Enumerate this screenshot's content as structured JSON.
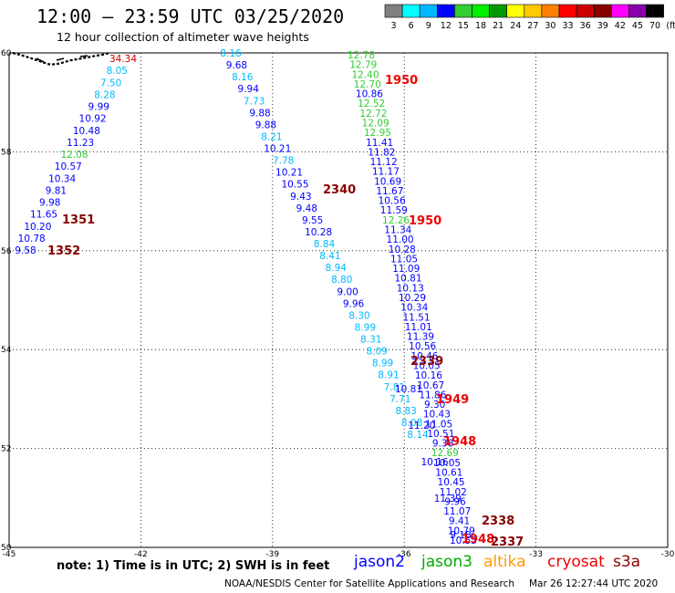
{
  "header": {
    "title": "12:00 – 23:59 UTC 03/25/2020",
    "subtitle": "12 hour collection of altimeter wave heights"
  },
  "legend": {
    "colors": [
      "#808080",
      "#00ffff",
      "#00b8ff",
      "#0000ff",
      "#33cc33",
      "#00ee00",
      "#009900",
      "#ffff00",
      "#ffc800",
      "#ff8000",
      "#ff0000",
      "#cc0000",
      "#880000",
      "#ff00ff",
      "#8800aa",
      "#000000"
    ],
    "labels": [
      "3",
      "6",
      "9",
      "12",
      "15",
      "18",
      "21",
      "24",
      "27",
      "30",
      "33",
      "36",
      "39",
      "42",
      "45",
      "70",
      "(ft)"
    ]
  },
  "axes": {
    "lat_ticks": [
      "60",
      "58",
      "56",
      "54",
      "52",
      "50"
    ],
    "lon_ticks": [
      "-45",
      "-42",
      "-39",
      "-36",
      "-33",
      "-30"
    ]
  },
  "readings": {
    "track1": [
      "34.34",
      "8.05",
      "7.50",
      "8.28",
      "9.99",
      "10.92",
      "10.48",
      "11.23",
      "12.08",
      "10.57",
      "10.34",
      "9.81",
      "9.98",
      "11.65",
      "10.20",
      "10.78",
      "9.58"
    ],
    "track2": [
      "8.16",
      "9.68",
      "8.16",
      "9.94",
      "7.73",
      "9.88",
      "9.88",
      "8.21",
      "10.21",
      "7.78",
      "10.21",
      "10.55",
      "9.43",
      "9.48",
      "9.55",
      "10.28",
      "8.84",
      "8.41",
      "8.94",
      "8.80",
      "9.00",
      "9.96",
      "8.30",
      "8.99",
      "8.31",
      "8.09",
      "8.99",
      "8.91",
      "7.81",
      "7.71",
      "8.83",
      "8.08",
      "8.14"
    ],
    "track3": [
      "12.78",
      "12.79",
      "12.40",
      "12.70",
      "10.86",
      "12.52",
      "12.72",
      "12.09",
      "12.95",
      "11.41",
      "11.82",
      "11.12",
      "11.17",
      "10.69",
      "11.67",
      "10.56",
      "11.59",
      "12.26",
      "11.34",
      "11.00",
      "10.28",
      "11.05",
      "11.09",
      "10.81",
      "10.13",
      "10.29",
      "10.34",
      "11.51",
      "11.01",
      "11.39",
      "10.56",
      "10.46",
      "10.05",
      "10.16",
      "10.67",
      "11.86",
      "9.30",
      "10.43",
      "11.05",
      "10.51",
      "9.38",
      "12.69",
      "10.05",
      "10.61",
      "10.45",
      "11.02",
      "9.96",
      "11.07",
      "9.41",
      "10.79",
      "10.55"
    ],
    "track3_extra": [
      "10.81",
      "11.20",
      "10.16",
      "11.39",
      "9.18"
    ],
    "times": [
      {
        "text": "1950",
        "color": "#ee0000"
      },
      {
        "text": "2340",
        "color": "#880000"
      },
      {
        "text": "1351",
        "color": "#880000"
      },
      {
        "text": "1950",
        "color": "#ee0000"
      },
      {
        "text": "1352",
        "color": "#880000"
      },
      {
        "text": "2339",
        "color": "#880000"
      },
      {
        "text": "1949",
        "color": "#ee0000"
      },
      {
        "text": "1948",
        "color": "#ee0000"
      },
      {
        "text": "2338",
        "color": "#880000"
      },
      {
        "text": "1948",
        "color": "#ee0000"
      },
      {
        "text": "2337",
        "color": "#880000"
      }
    ]
  },
  "footer": {
    "note": "note: 1) Time is in UTC; 2) SWH is in feet",
    "satellites": [
      {
        "name": "jason2",
        "color": "#0000ff"
      },
      {
        "name": "jason3",
        "color": "#00aa00"
      },
      {
        "name": "altika",
        "color": "#ff9900"
      },
      {
        "name": "cryosat",
        "color": "#ee0000"
      },
      {
        "name": "s3a",
        "color": "#880000"
      }
    ],
    "credit": "NOAA/NESDIS Center for Satellite Applications and Research",
    "stamp": "Mar 26 12:27:44 UTC 2020"
  }
}
